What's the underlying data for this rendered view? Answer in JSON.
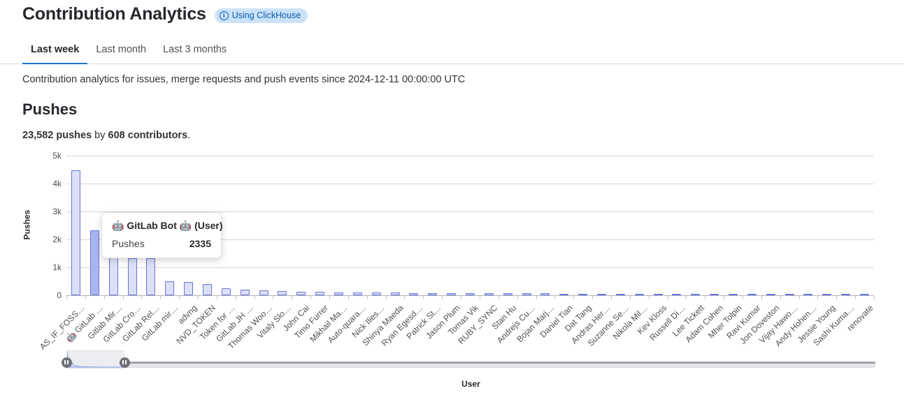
{
  "header": {
    "title": "Contribution Analytics",
    "badge_label": "Using ClickHouse"
  },
  "tabs": [
    {
      "label": "Last week",
      "active": true
    },
    {
      "label": "Last month",
      "active": false
    },
    {
      "label": "Last 3 months",
      "active": false
    }
  ],
  "description": "Contribution analytics for issues, merge requests and push events since 2024-12-11 00:00:00 UTC",
  "pushes_section": {
    "heading": "Pushes",
    "summary_pushes": "23,582 pushes",
    "summary_joiner": " by ",
    "summary_contributors": "608 contributors",
    "summary_period": "."
  },
  "tooltip": {
    "title": "🤖 GitLab Bot 🤖 (User)",
    "metric_label": "Pushes",
    "value": "2335"
  },
  "icons": {
    "badge_icon": "info-icon",
    "slider_handle_icon": "grip-pause-icon"
  },
  "colors": {
    "accent_blue": "#1f75cb",
    "badge_bg": "#cbe2f9",
    "badge_text": "#0b5cad",
    "bar_fill": "#dbe0f7",
    "bar_border": "#6674dc",
    "bar_hover_fill": "#a9b5ee"
  },
  "chart_data": {
    "type": "bar",
    "xlabel": "User",
    "ylabel": "Pushes",
    "ylim": [
      0,
      5000
    ],
    "yticks": [
      "0",
      "1k",
      "2k",
      "3k",
      "4k",
      "5k"
    ],
    "grid": true,
    "legend": false,
    "highlight_index": 1,
    "categories": [
      "AS_IF_FOSS…",
      "🤖 GitLab …",
      "Gitlab Mir…",
      "GitLab Cro…",
      "GitLab Rel…",
      "GitLab mir…",
      "advng",
      "NVD_TOKEN",
      "Token for …",
      "GitLab JH …",
      "Thomas Woo…",
      "Vitaly Slo…",
      "John Cai",
      "Timo Furrer",
      "Mikhail Ma…",
      "Auto-quara…",
      "Nick Ilies…",
      "Shinya Maeda",
      "Ryan Egesd…",
      "Patrick St…",
      "Jason Plum",
      "Tomas Vik",
      "RUBY_SYNC",
      "Stan Hu",
      "Andrejs Cu…",
      "Bojan Marj…",
      "Daniel Tian",
      "Dat Tang",
      "Andras Her…",
      "Suzanne Se…",
      "Nikola Mil…",
      "Kev Kloss",
      "Russell Di…",
      "Lee Tickett",
      "Adam Cohen",
      "Mher Tolpin",
      "Ravi Kumar",
      "Jon Doveston",
      "Vijay Hawo…",
      "Andy Hohen…",
      "Jessie Young",
      "Sashi Kuma…",
      "renovate"
    ],
    "values": [
      4485,
      2335,
      1450,
      1320,
      1320,
      500,
      480,
      400,
      250,
      200,
      170,
      150,
      130,
      115,
      105,
      100,
      95,
      90,
      85,
      80,
      78,
      75,
      72,
      70,
      68,
      65,
      62,
      60,
      58,
      55,
      53,
      52,
      50,
      48,
      46,
      45,
      44,
      42,
      40,
      38,
      36,
      34,
      32
    ]
  }
}
